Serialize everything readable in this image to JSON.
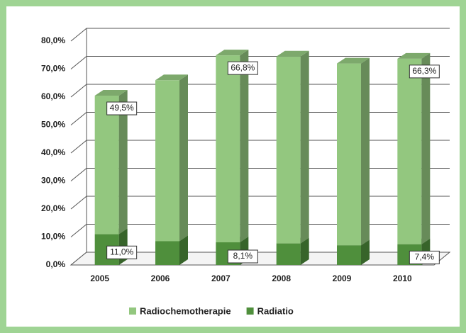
{
  "chart_data": {
    "type": "stacked_bar_3d",
    "categories": [
      "2005",
      "2006",
      "2007",
      "2008",
      "2009",
      "2010"
    ],
    "series": [
      {
        "name": "Radiochemotherapie",
        "color": "#93c77f",
        "values": [
          49.5,
          57.5,
          66.8,
          66.8,
          65.0,
          66.3
        ],
        "value_labels": [
          "49,5%",
          null,
          "66,8%",
          null,
          null,
          "66,3%"
        ]
      },
      {
        "name": "Radiatio",
        "color": "#4f8f3c",
        "values": [
          11.0,
          8.5,
          8.1,
          7.7,
          7.0,
          7.4
        ],
        "value_labels": [
          "11,0%",
          null,
          "8,1%",
          null,
          null,
          "7,4%"
        ]
      }
    ],
    "ylim": [
      0,
      80
    ],
    "yticks": [
      {
        "value": 0,
        "label": "0,0%"
      },
      {
        "value": 10,
        "label": "10,0%"
      },
      {
        "value": 20,
        "label": "20,0%"
      },
      {
        "value": 30,
        "label": "30,0%"
      },
      {
        "value": 40,
        "label": "40,0%"
      },
      {
        "value": 50,
        "label": "50,0%"
      },
      {
        "value": 60,
        "label": "60,0%"
      },
      {
        "value": 70,
        "label": "70,0%"
      },
      {
        "value": 80,
        "label": "80,0%"
      }
    ],
    "grid": true,
    "legend": "bottom"
  }
}
